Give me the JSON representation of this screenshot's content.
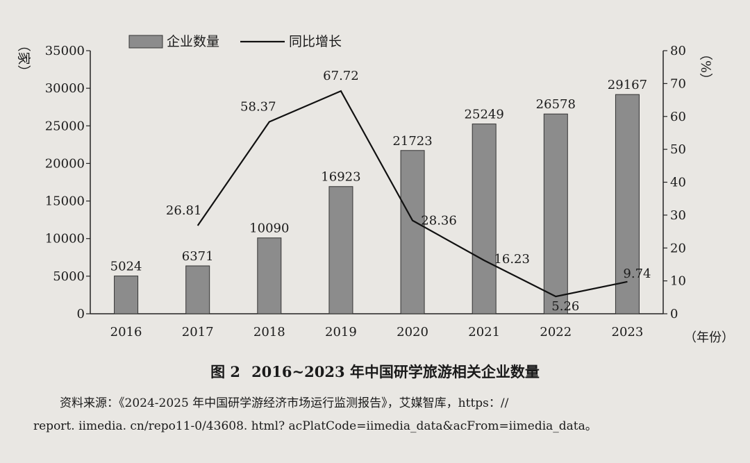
{
  "chart_data": {
    "type": "bar+line",
    "categories": [
      "2016",
      "2017",
      "2018",
      "2019",
      "2020",
      "2021",
      "2022",
      "2023"
    ],
    "series": [
      {
        "name": "企业数量",
        "type": "bar",
        "axis": "left",
        "values": [
          5024,
          6371,
          10090,
          16923,
          21723,
          25249,
          26578,
          29167
        ]
      },
      {
        "name": "同比增长",
        "type": "line",
        "axis": "right",
        "values": [
          null,
          26.81,
          58.37,
          67.72,
          28.36,
          16.23,
          5.26,
          9.74
        ]
      }
    ],
    "bar_labels": [
      "5024",
      "6371",
      "10090",
      "16923",
      "21723",
      "25249",
      "26578",
      "29167"
    ],
    "line_labels": [
      "",
      "26.81",
      "58.37",
      "67.72",
      "28.36",
      "16.23",
      "5.26",
      "9.74"
    ],
    "ylim_left": [
      0,
      35000
    ],
    "ylim_right": [
      0,
      80
    ],
    "yticks_left": [
      "0",
      "5000",
      "10000",
      "15000",
      "20000",
      "25000",
      "30000",
      "35000"
    ],
    "yticks_right": [
      "0",
      "10",
      "20",
      "30",
      "40",
      "50",
      "60",
      "70",
      "80"
    ],
    "ylabel_left": "（家）",
    "ylabel_right": "（%）",
    "xlabel": "（年份）",
    "legend_position": "top",
    "grid": false,
    "colors": {
      "bar": "#8c8c8c",
      "line": "#111111",
      "axis": "#222222"
    }
  },
  "caption": {
    "fig_no": "图 2",
    "title": "2016~2023 年中国研学旅游相关企业数量"
  },
  "source": {
    "line1": "资料来源：《2024-2025 年中国研学游经济市场运行监测报告》，艾媒智库，https：//",
    "line2": "report. iimedia. cn/repo11-0/43608. html? acPlatCode=iimedia_data&acFrom=iimedia_data。"
  }
}
